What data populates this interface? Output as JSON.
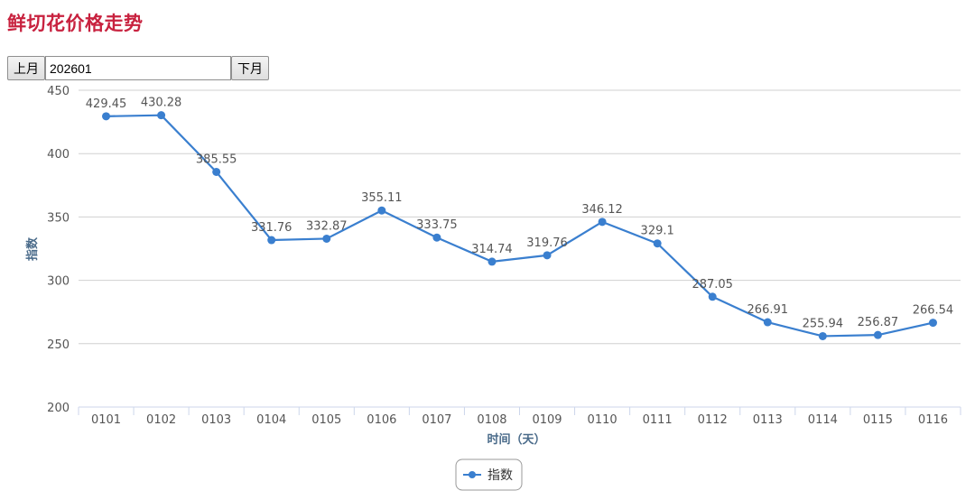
{
  "page": {
    "title": "鲜切花价格走势"
  },
  "controls": {
    "prev_label": "上月",
    "next_label": "下月",
    "month_value": "202601"
  },
  "chart_data": {
    "type": "line",
    "title": "",
    "xlabel": "时间（天）",
    "ylabel": "指数",
    "ylim": [
      200,
      450
    ],
    "yticks": [
      200,
      250,
      300,
      350,
      400,
      450
    ],
    "grid": true,
    "legend_position": "bottom-center",
    "categories": [
      "0101",
      "0102",
      "0103",
      "0104",
      "0105",
      "0106",
      "0107",
      "0108",
      "0109",
      "0110",
      "0111",
      "0112",
      "0113",
      "0114",
      "0115",
      "0116"
    ],
    "series": [
      {
        "name": "指数",
        "color": "#3a7fcf",
        "values": [
          429.45,
          430.28,
          385.55,
          331.76,
          332.87,
          355.11,
          333.75,
          314.74,
          319.76,
          346.12,
          329.1,
          287.05,
          266.91,
          255.94,
          256.87,
          266.54
        ]
      }
    ]
  }
}
